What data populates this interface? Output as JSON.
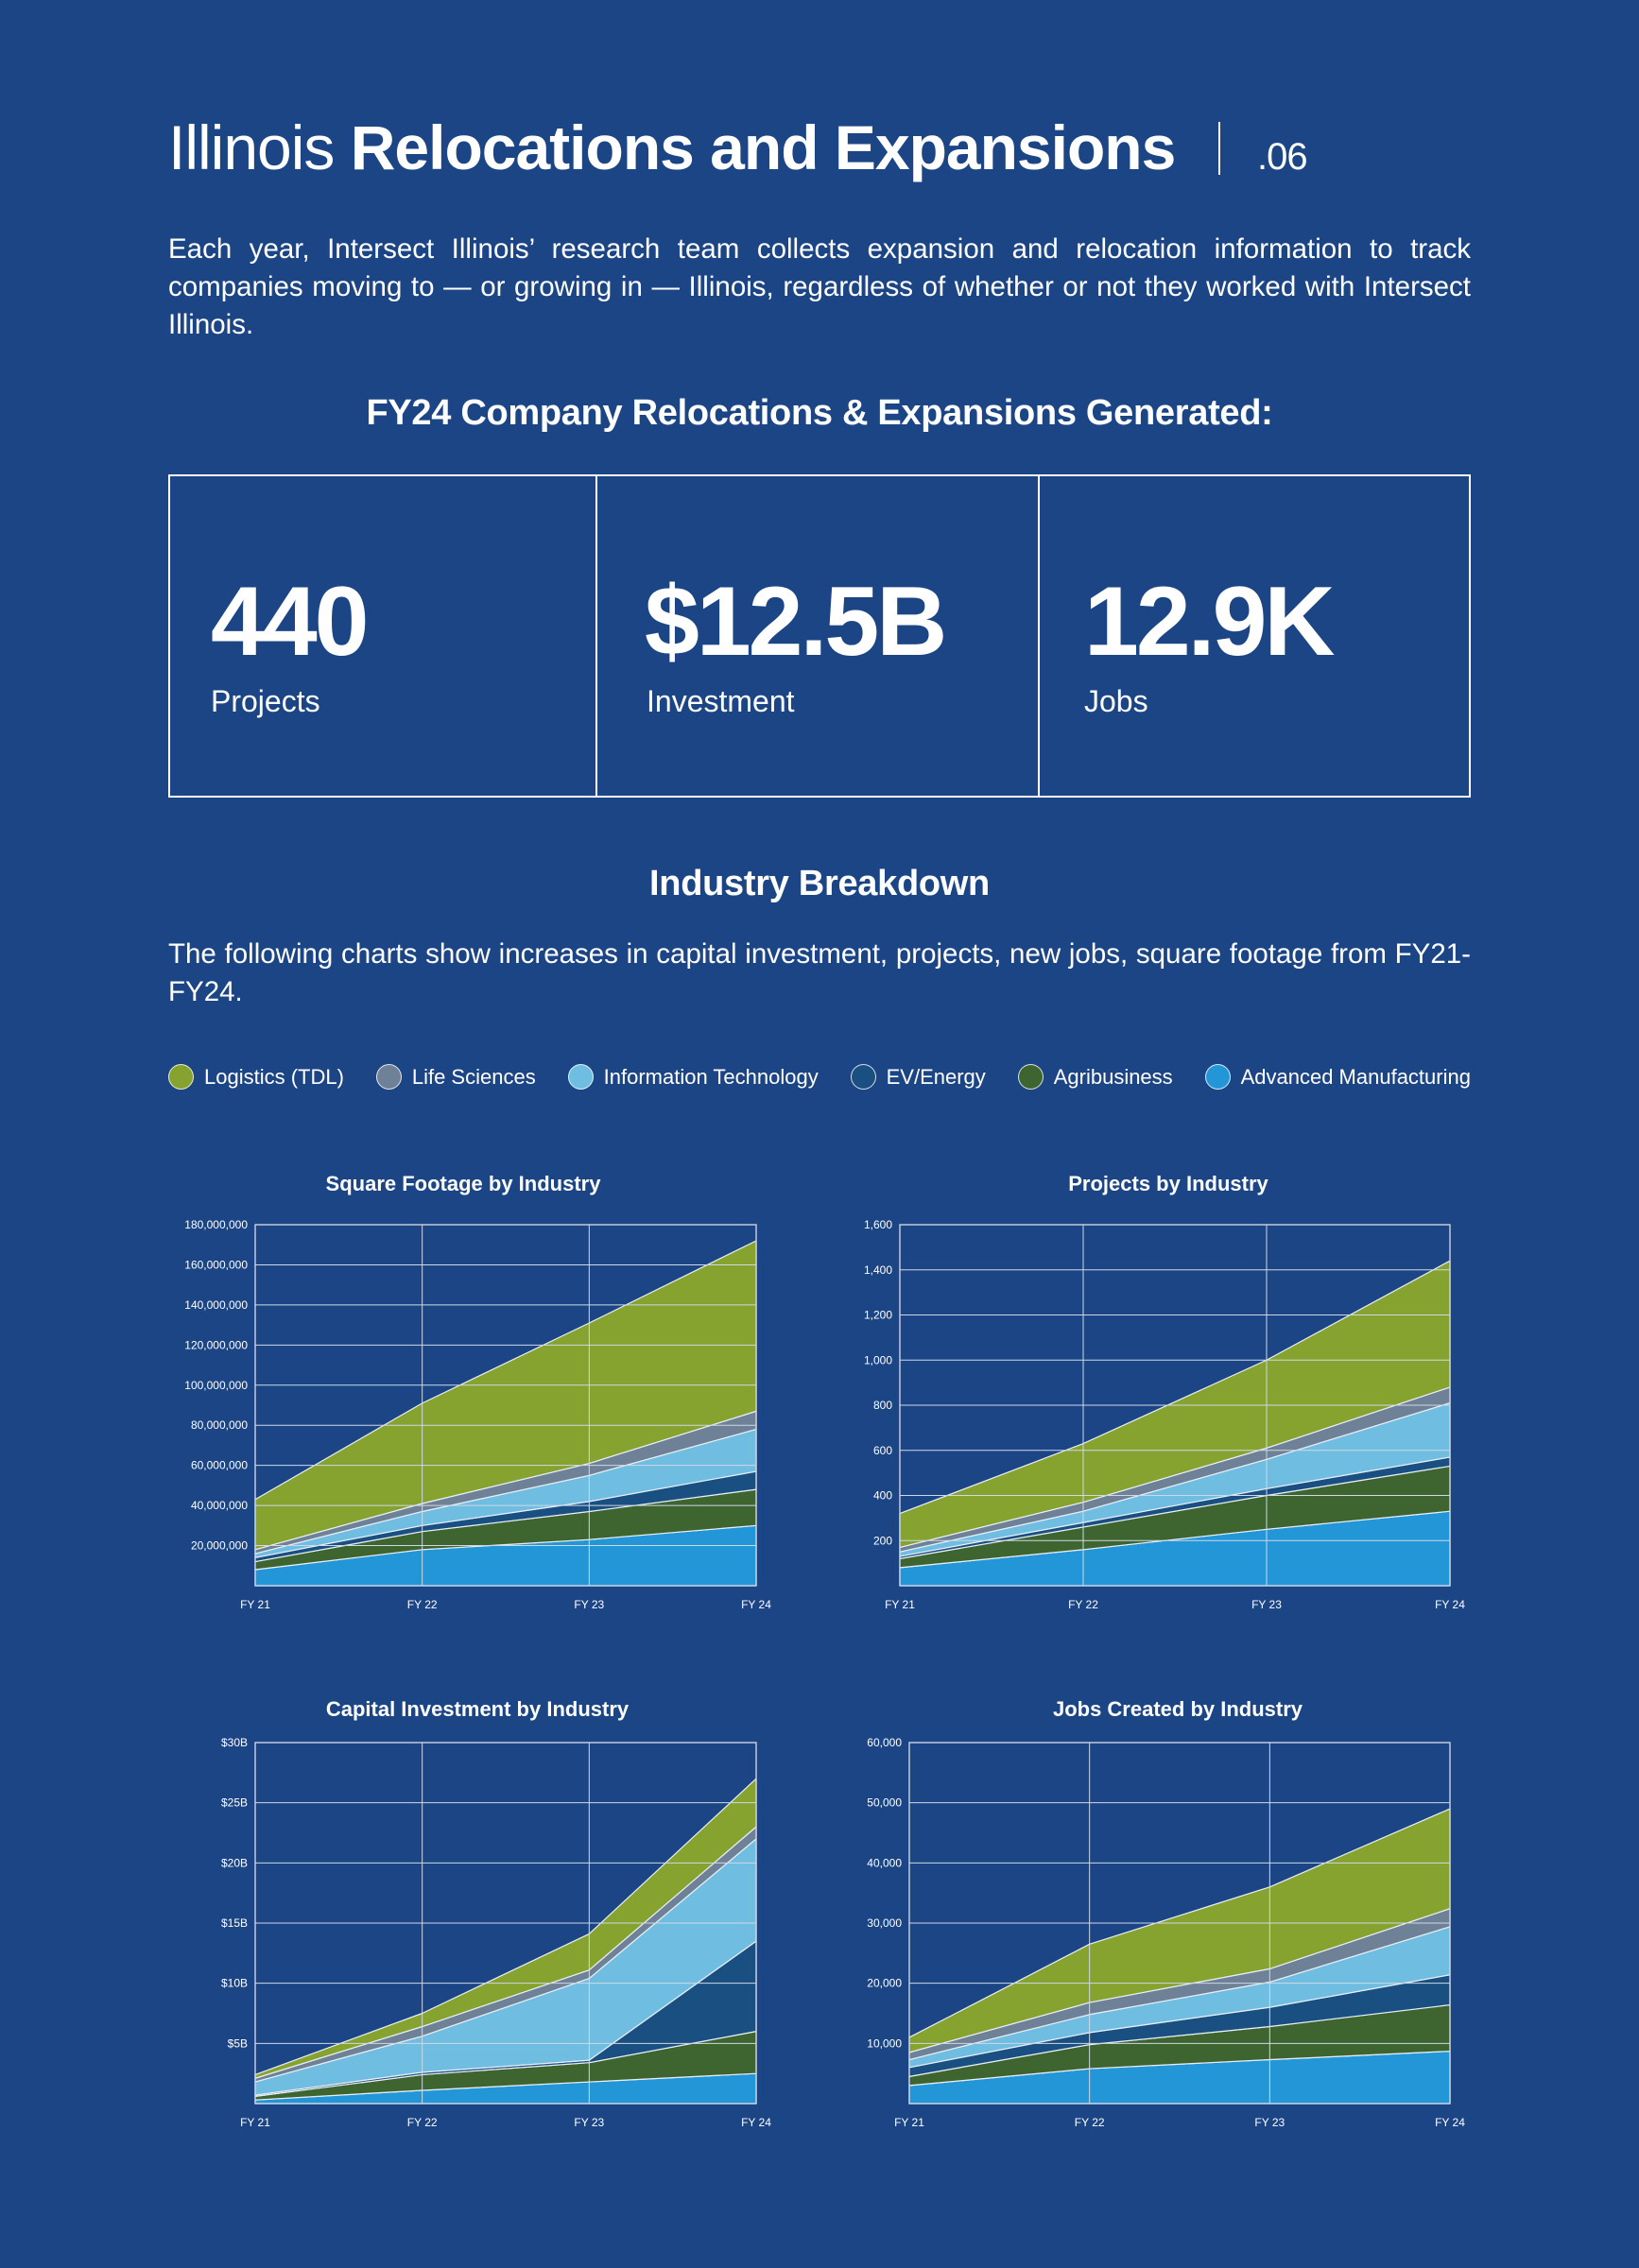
{
  "header": {
    "title_light": "Illinois",
    "title_bold": "Relocations and Expansions",
    "page_number": ".06"
  },
  "intro": "Each year, Intersect Illinois’ research team collects expansion and relocation information to track companies moving to — or growing in — Illinois, regardless of whether or not they worked with Intersect Illinois.",
  "summary_title": "FY24 Company Relocations & Expansions Generated:",
  "stats": [
    {
      "value": "440",
      "label": "Projects"
    },
    {
      "value": "$12.5B",
      "label": "Investment"
    },
    {
      "value": "12.9K",
      "label": "Jobs"
    }
  ],
  "breakdown": {
    "title": "Industry Breakdown",
    "description": "The following charts show increases in capital investment, projects, new jobs, square footage from FY21-FY24."
  },
  "legend": [
    {
      "name": "Logistics (TDL)",
      "color": "#86a22f"
    },
    {
      "name": "Life Sciences",
      "color": "#6e8196"
    },
    {
      "name": "Information Technology",
      "color": "#6fbde0"
    },
    {
      "name": "EV/Energy",
      "color": "#1a4f82"
    },
    {
      "name": "Agribusiness",
      "color": "#3e6530"
    },
    {
      "name": "Advanced Manufacturing",
      "color": "#2396d8"
    }
  ],
  "chart_data": [
    {
      "type": "area",
      "stacked": true,
      "title": "Square Footage by Industry",
      "categories": [
        "FY 21",
        "FY 22",
        "FY 23",
        "FY 24"
      ],
      "ylim": [
        0,
        180000000
      ],
      "yticks": [
        20000000,
        40000000,
        60000000,
        80000000,
        100000000,
        120000000,
        140000000,
        160000000,
        180000000
      ],
      "ytick_labels": [
        "20,000,000",
        "40,000,000",
        "60,000,000",
        "80,000,000",
        "100,000,000",
        "120,000,000",
        "140,000,000",
        "160,000,000",
        "180,000,000"
      ],
      "series": [
        {
          "name": "Advanced Manufacturing",
          "values": [
            8000000,
            18000000,
            23000000,
            30000000
          ]
        },
        {
          "name": "Agribusiness",
          "values": [
            4000000,
            9000000,
            14000000,
            18000000
          ]
        },
        {
          "name": "EV/Energy",
          "values": [
            2000000,
            3000000,
            5000000,
            9000000
          ]
        },
        {
          "name": "Information Technology",
          "values": [
            2000000,
            7000000,
            13000000,
            21000000
          ]
        },
        {
          "name": "Life Sciences",
          "values": [
            2000000,
            4000000,
            6000000,
            9000000
          ]
        },
        {
          "name": "Logistics (TDL)",
          "values": [
            25000000,
            50000000,
            70000000,
            85000000
          ]
        }
      ]
    },
    {
      "type": "area",
      "stacked": true,
      "title": "Projects by Industry",
      "categories": [
        "FY 21",
        "FY 22",
        "FY 23",
        "FY 24"
      ],
      "ylim": [
        0,
        1600
      ],
      "yticks": [
        200,
        400,
        600,
        800,
        1000,
        1200,
        1400,
        1600
      ],
      "ytick_labels": [
        "200",
        "400",
        "600",
        "800",
        "1,000",
        "1,200",
        "1,400",
        "1,600"
      ],
      "series": [
        {
          "name": "Advanced Manufacturing",
          "values": [
            80,
            160,
            250,
            330
          ]
        },
        {
          "name": "Agribusiness",
          "values": [
            40,
            100,
            150,
            200
          ]
        },
        {
          "name": "EV/Energy",
          "values": [
            10,
            20,
            30,
            40
          ]
        },
        {
          "name": "Information Technology",
          "values": [
            20,
            50,
            130,
            240
          ]
        },
        {
          "name": "Life Sciences",
          "values": [
            20,
            40,
            50,
            70
          ]
        },
        {
          "name": "Logistics (TDL)",
          "values": [
            150,
            260,
            390,
            560
          ]
        }
      ]
    },
    {
      "type": "area",
      "stacked": true,
      "title": "Capital Investment by Industry",
      "categories": [
        "FY 21",
        "FY 22",
        "FY 23",
        "FY 24"
      ],
      "ylim": [
        0,
        30
      ],
      "yticks": [
        5,
        10,
        15,
        20,
        25,
        30
      ],
      "ytick_labels": [
        "$5B",
        "$10B",
        "$15B",
        "$20B",
        "$25B",
        "$30B"
      ],
      "series": [
        {
          "name": "Advanced Manufacturing",
          "values": [
            0.3,
            1.1,
            1.8,
            2.5
          ]
        },
        {
          "name": "Agribusiness",
          "values": [
            0.3,
            1.3,
            1.6,
            3.5
          ]
        },
        {
          "name": "EV/Energy",
          "values": [
            0.1,
            0.2,
            0.2,
            7.5
          ]
        },
        {
          "name": "Information Technology",
          "values": [
            1.1,
            3.0,
            6.8,
            8.5
          ]
        },
        {
          "name": "Life Sciences",
          "values": [
            0.3,
            0.8,
            0.7,
            1.0
          ]
        },
        {
          "name": "Logistics (TDL)",
          "values": [
            0.3,
            1.1,
            3.0,
            4.0
          ]
        }
      ]
    },
    {
      "type": "area",
      "stacked": true,
      "title": "Jobs Created by Industry",
      "categories": [
        "FY 21",
        "FY 22",
        "FY 23",
        "FY 24"
      ],
      "ylim": [
        0,
        60000
      ],
      "yticks": [
        10000,
        20000,
        30000,
        40000,
        50000,
        60000
      ],
      "ytick_labels": [
        "10,000",
        "20,000",
        "30,000",
        "40,000",
        "50,000",
        "60,000"
      ],
      "series": [
        {
          "name": "Advanced Manufacturing",
          "values": [
            3000,
            5800,
            7300,
            8700
          ]
        },
        {
          "name": "Agribusiness",
          "values": [
            1500,
            4000,
            5500,
            7700
          ]
        },
        {
          "name": "EV/Energy",
          "values": [
            1500,
            2000,
            3200,
            5000
          ]
        },
        {
          "name": "Information Technology",
          "values": [
            1300,
            3000,
            4200,
            8000
          ]
        },
        {
          "name": "Life Sciences",
          "values": [
            1200,
            2000,
            2200,
            3000
          ]
        },
        {
          "name": "Logistics (TDL)",
          "values": [
            2500,
            9700,
            13600,
            16600
          ]
        }
      ]
    }
  ]
}
